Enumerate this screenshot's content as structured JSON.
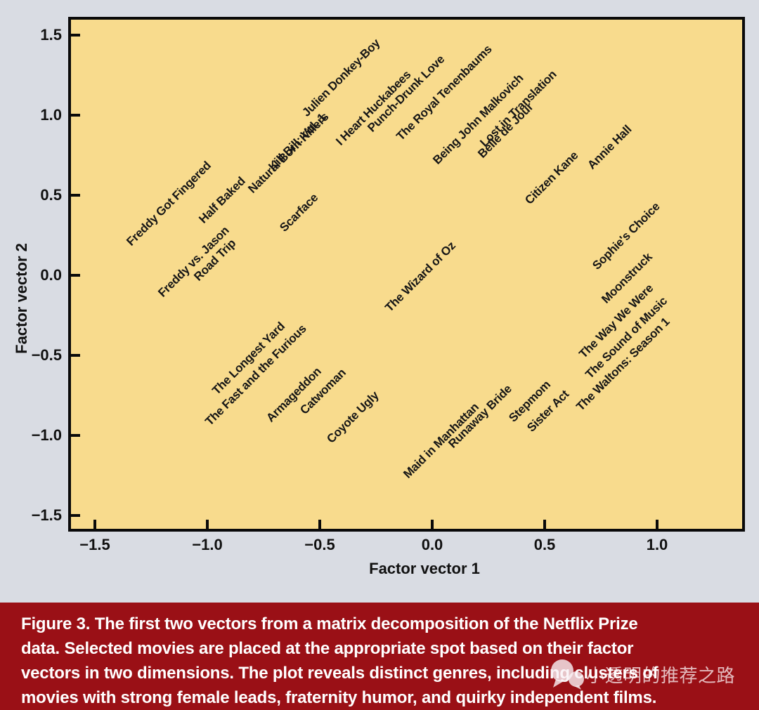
{
  "page": {
    "background": "#D9DCE3"
  },
  "plot": {
    "background": "#F8DB8D",
    "border_color": "#0A0A0A",
    "xlabel": "Factor vector 1",
    "ylabel": "Factor vector 2",
    "x_ticks": [
      {
        "label": "−1.5",
        "value": -1.5
      },
      {
        "label": "−1.0",
        "value": -1.0
      },
      {
        "label": "−0.5",
        "value": -0.5
      },
      {
        "label": "0.0",
        "value": 0.0
      },
      {
        "label": "0.5",
        "value": 0.5
      },
      {
        "label": "1.0",
        "value": 1.0
      }
    ],
    "y_ticks": [
      {
        "label": "1.5",
        "value": 1.5
      },
      {
        "label": "1.0",
        "value": 1.0
      },
      {
        "label": "0.5",
        "value": 0.5
      },
      {
        "label": "0.0",
        "value": 0.0
      },
      {
        "label": "−0.5",
        "value": -0.5
      },
      {
        "label": "−1.0",
        "value": -1.0
      },
      {
        "label": "−1.5",
        "value": -1.5
      }
    ]
  },
  "chart_data": {
    "type": "scatter",
    "title": "",
    "xlabel": "Factor vector 1",
    "ylabel": "Factor vector 2",
    "xlim": [
      -1.62,
      1.42
    ],
    "ylim": [
      -1.6,
      1.6
    ],
    "grid": false,
    "label_rotation_deg": 45,
    "x_tick_values": [
      -1.5,
      -1.0,
      -0.5,
      0.0,
      0.5,
      1.0
    ],
    "y_tick_values": [
      1.5,
      1.0,
      0.5,
      0.0,
      -0.5,
      -1.0,
      -1.5
    ],
    "points": [
      {
        "label": "Freddy Got Fingered",
        "x": -1.33,
        "y": 0.17
      },
      {
        "label": "Half Baked",
        "x": -1.01,
        "y": 0.31
      },
      {
        "label": "Freddy vs. Jason",
        "x": -1.19,
        "y": -0.15
      },
      {
        "label": "Road Trip",
        "x": -1.03,
        "y": -0.05
      },
      {
        "label": "Natural Born Killers",
        "x": -0.79,
        "y": 0.5
      },
      {
        "label": "Kill Bill: Vol. 1",
        "x": -0.7,
        "y": 0.64
      },
      {
        "label": "Scarface",
        "x": -0.65,
        "y": 0.26
      },
      {
        "label": "Julien Donkey-Boy",
        "x": -0.55,
        "y": 0.98
      },
      {
        "label": "I Heart Huckabees",
        "x": -0.4,
        "y": 0.8
      },
      {
        "label": "Punch-Drunk Love",
        "x": -0.26,
        "y": 0.88
      },
      {
        "label": "The Royal Tenenbaums",
        "x": -0.13,
        "y": 0.83
      },
      {
        "label": "Being John Malkovich",
        "x": 0.03,
        "y": 0.68
      },
      {
        "label": "Lost in Translation",
        "x": 0.24,
        "y": 0.79
      },
      {
        "label": "Belle de Jour",
        "x": 0.23,
        "y": 0.72
      },
      {
        "label": "Citizen Kane",
        "x": 0.44,
        "y": 0.43
      },
      {
        "label": "Annie Hall",
        "x": 0.72,
        "y": 0.65
      },
      {
        "label": "Sophie's Choice",
        "x": 0.74,
        "y": 0.02
      },
      {
        "label": "Moonstruck",
        "x": 0.78,
        "y": -0.19
      },
      {
        "label": "The Way We Were",
        "x": 0.68,
        "y": -0.53
      },
      {
        "label": "The Sound of Music",
        "x": 0.71,
        "y": -0.66
      },
      {
        "label": "The Waltons: Season 1",
        "x": 0.67,
        "y": -0.86
      },
      {
        "label": "Stepmom",
        "x": 0.37,
        "y": -0.93
      },
      {
        "label": "Sister Act",
        "x": 0.45,
        "y": -0.99
      },
      {
        "label": "Runaway Bride",
        "x": 0.1,
        "y": -1.09
      },
      {
        "label": "Maid in Manhattan",
        "x": -0.1,
        "y": -1.28
      },
      {
        "label": "Coyote Ugly",
        "x": -0.44,
        "y": -1.06
      },
      {
        "label": "Catwoman",
        "x": -0.56,
        "y": -0.88
      },
      {
        "label": "Armageddon",
        "x": -0.71,
        "y": -0.93
      },
      {
        "label": "The Longest Yard",
        "x": -0.95,
        "y": -0.76
      },
      {
        "label": "The Fast and the Furious",
        "x": -0.98,
        "y": -0.95
      },
      {
        "label": "The Wizard of Oz",
        "x": -0.18,
        "y": -0.24
      }
    ]
  },
  "caption": {
    "background": "#9A1016",
    "text_color": "#FFFFFF",
    "label": "Figure 3.",
    "lines": [
      "The first two vectors from a matrix decomposition of the Netflix Prize",
      "data. Selected movies are placed at the appropriate spot based on their factor",
      "vectors in two dimensions. The plot reveals distinct genres, including clusters of",
      "movies with strong female leads, fraternity humor, and quirky independent films."
    ]
  },
  "watermark": {
    "icon": "chat-bubbles-icon",
    "text": "小透明的推荐之路"
  }
}
